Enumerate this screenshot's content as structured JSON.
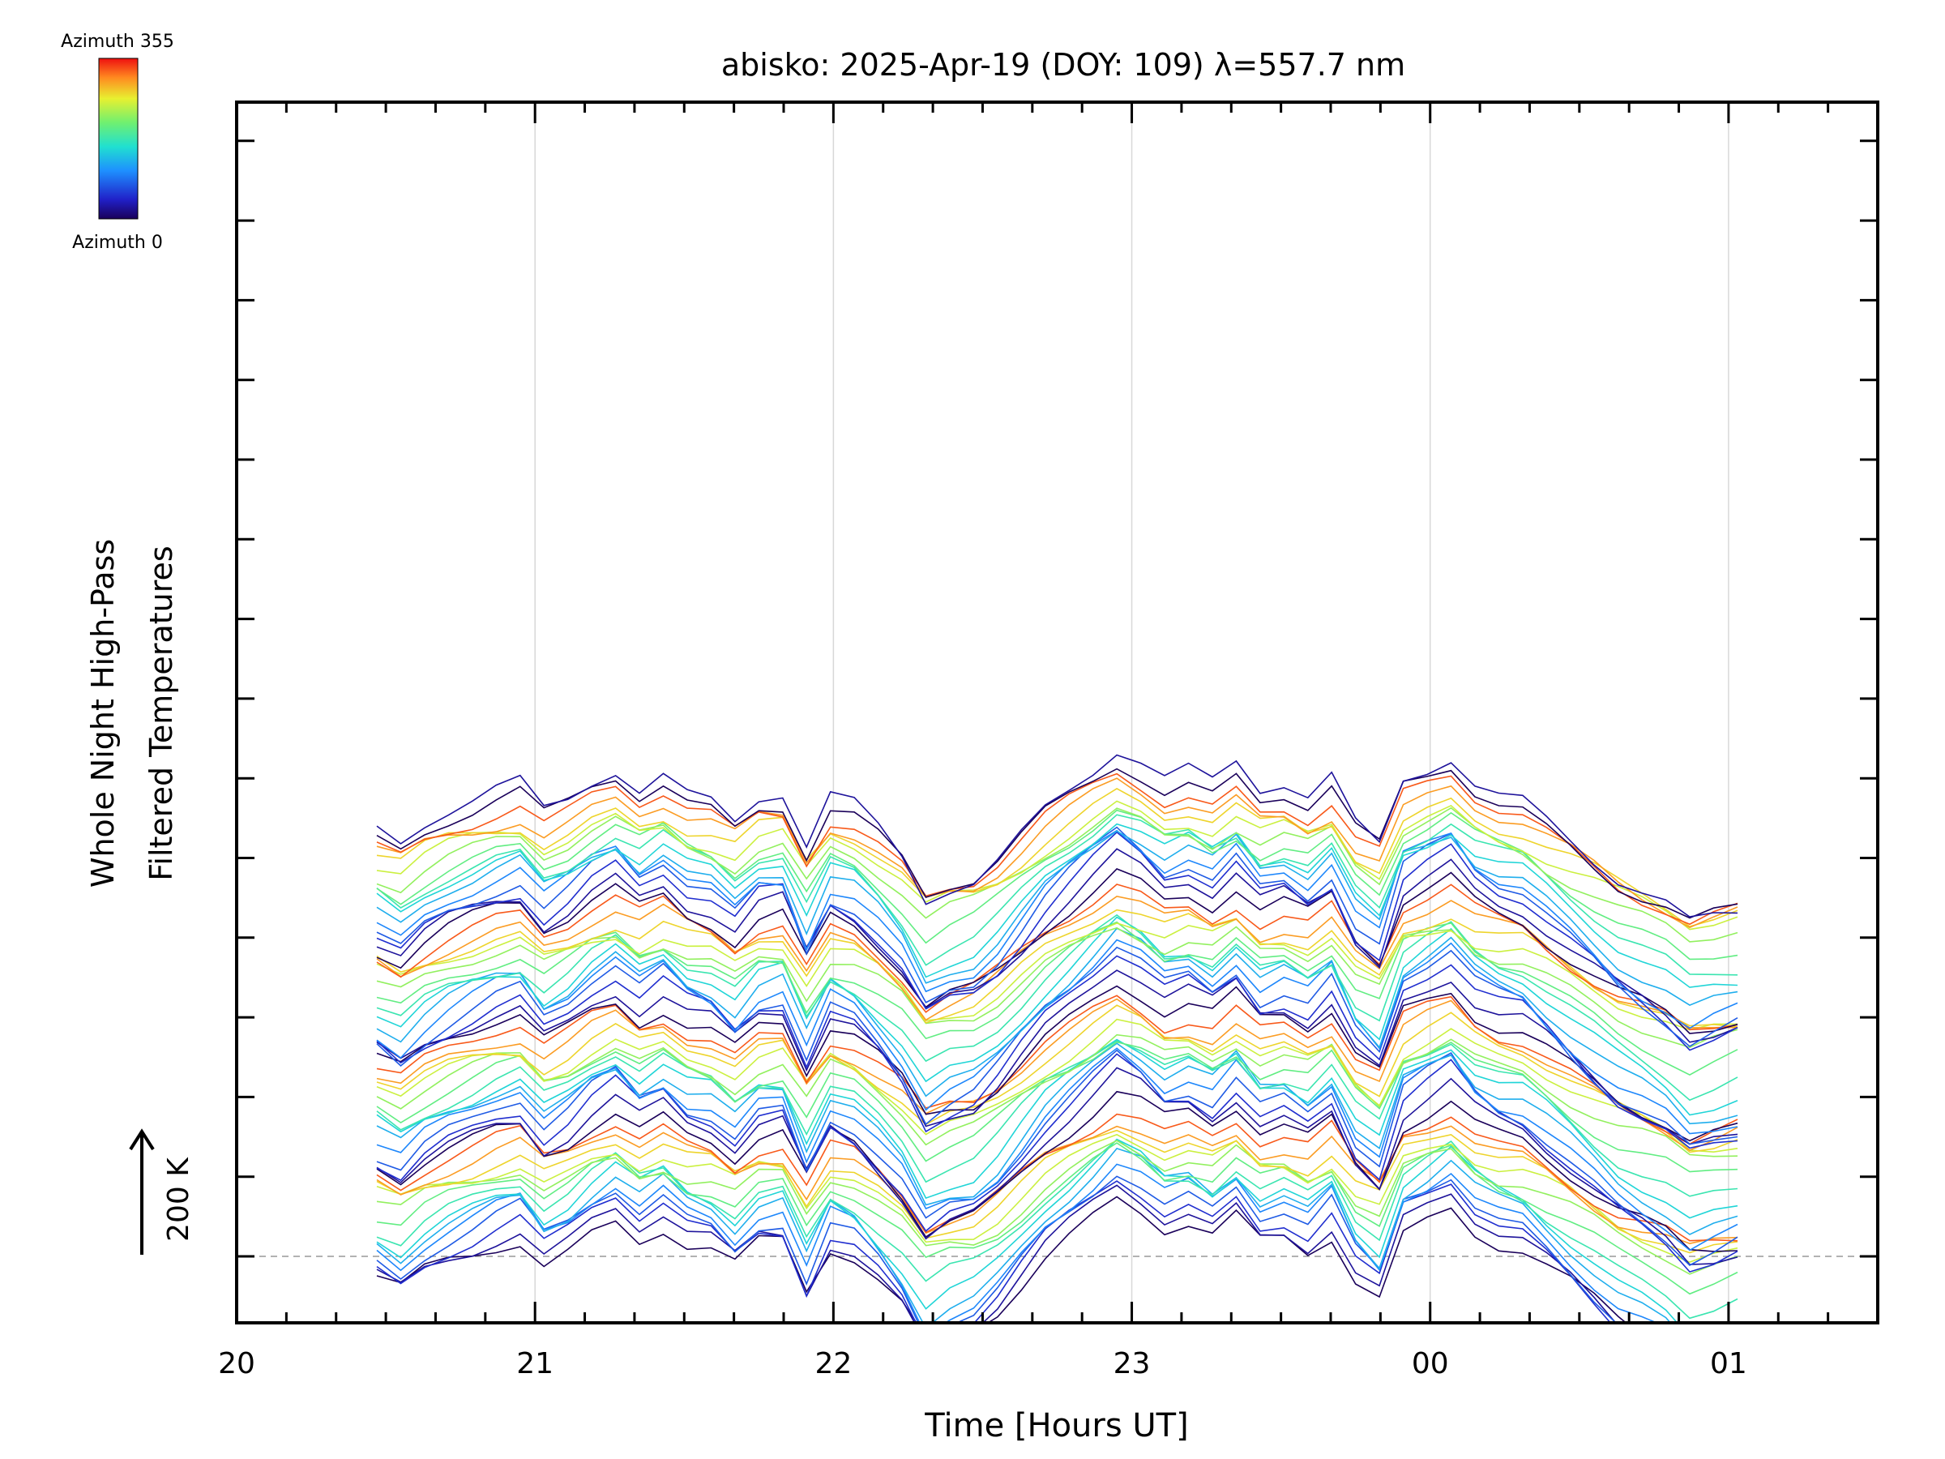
{
  "chart_data": {
    "type": "line",
    "title": "abisko: 2025-Apr-19 (DOY: 109) λ=557.7 nm",
    "xlabel": "Time [Hours UT]",
    "ylabel_line1": "Whole Night High-Pass",
    "ylabel_line2": "Filtered Temperatures",
    "y_scale_label": "200 K",
    "x_tick_labels": [
      "20",
      "21",
      "22",
      "23",
      "00",
      "01"
    ],
    "x_tick_hours": [
      20,
      21,
      22,
      23,
      24,
      25
    ],
    "xlim_hours": [
      20.0,
      25.5
    ],
    "data_start_hour": 20.47,
    "data_end_hour": 25.03,
    "x_hours": [
      20.47,
      20.55,
      20.63,
      20.71,
      20.79,
      20.87,
      20.95,
      21.03,
      21.11,
      21.19,
      21.27,
      21.35,
      21.43,
      21.51,
      21.59,
      21.67,
      21.75,
      21.83,
      21.91,
      21.99,
      22.07,
      22.15,
      22.23,
      22.31,
      22.39,
      22.47,
      22.55,
      22.63,
      22.71,
      22.79,
      22.87,
      22.95,
      23.03,
      23.11,
      23.19,
      23.27,
      23.35,
      23.43,
      23.51,
      23.59,
      23.67,
      23.75,
      23.83,
      23.91,
      23.99,
      24.07,
      24.15,
      24.23,
      24.31,
      24.39,
      24.47,
      24.55,
      24.63,
      24.71,
      24.79,
      24.87,
      24.95,
      25.03
    ],
    "base_profile": [
      -40,
      -60,
      -30,
      -10,
      5,
      20,
      30,
      -10,
      10,
      40,
      60,
      30,
      50,
      20,
      10,
      -20,
      15,
      20,
      -60,
      10,
      -5,
      -40,
      -80,
      -140,
      -120,
      -110,
      -80,
      -40,
      0,
      30,
      60,
      90,
      70,
      40,
      50,
      30,
      60,
      20,
      30,
      10,
      40,
      -30,
      -60,
      40,
      60,
      80,
      40,
      20,
      10,
      -20,
      -50,
      -80,
      -110,
      -130,
      -150,
      -180,
      -170,
      -160
    ],
    "stack_spacing_K": 13,
    "series_count": 58,
    "series_count_note_free": true,
    "azimuth_range": [
      0,
      355
    ],
    "colorbar": {
      "top_label": "Azimuth 355",
      "bottom_label": "Azimuth 0",
      "colormap": "rainbow (dark blue → cyan → green → yellow → red)"
    },
    "grid": "vertical lines at whole hours",
    "baseline_dashed": true
  }
}
